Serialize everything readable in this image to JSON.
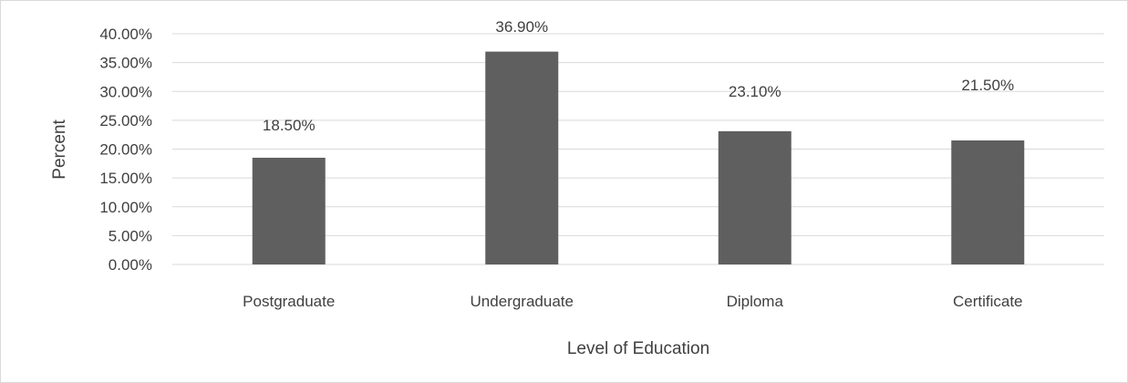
{
  "chart_data": {
    "type": "bar",
    "categories": [
      "Postgraduate",
      "Undergraduate",
      "Diploma",
      "Certificate"
    ],
    "values": [
      18.5,
      36.9,
      23.1,
      21.5
    ],
    "data_labels": [
      "18.50%",
      "36.90%",
      "23.10%",
      "21.50%"
    ],
    "title": "",
    "xlabel": "Level of Education",
    "ylabel": "Percent",
    "ylim": [
      0,
      40
    ],
    "yticks": [
      0,
      5,
      10,
      15,
      20,
      25,
      30,
      35,
      40
    ],
    "ytick_labels": [
      "0.00%",
      "5.00%",
      "10.00%",
      "15.00%",
      "20.00%",
      "25.00%",
      "30.00%",
      "35.00%",
      "40.00%"
    ],
    "grid": true,
    "legend": "none",
    "colors": {
      "bar": "#5f5f5f",
      "grid": "#d9d9d9",
      "text": "#404040"
    }
  }
}
